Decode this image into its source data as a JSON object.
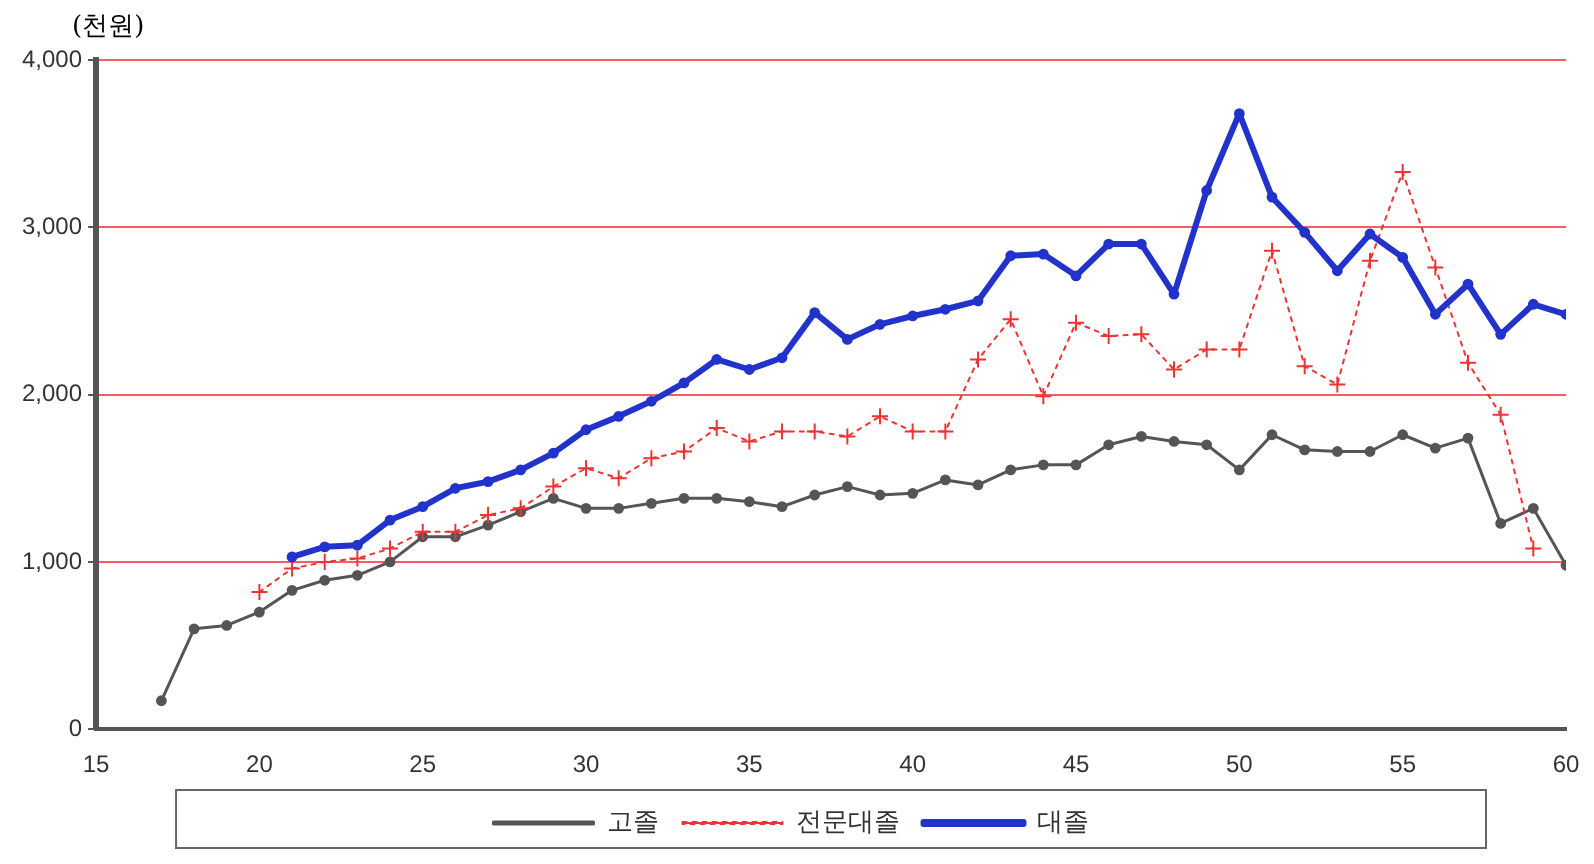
{
  "chart_data": {
    "type": "line",
    "ylabel": "(천원)",
    "xlim": [
      15,
      60
    ],
    "xticks": [
      15,
      20,
      25,
      30,
      35,
      40,
      45,
      50,
      55,
      60
    ],
    "ylim": [
      0,
      4000
    ],
    "yticks": [
      0,
      {
        "value": 1000,
        "label": "1,000"
      },
      {
        "value": 2000,
        "label": "2,000"
      },
      {
        "value": 3000,
        "label": "3,000"
      },
      {
        "value": 4000,
        "label": "4,000"
      }
    ],
    "grid": "y",
    "legend": "bottom",
    "series": [
      {
        "name": "고졸",
        "color": "#555555",
        "marker": "circle",
        "line_style": "solid",
        "x": [
          17,
          18,
          19,
          20,
          21,
          22,
          23,
          24,
          25,
          26,
          27,
          28,
          29,
          30,
          31,
          32,
          33,
          34,
          35,
          36,
          37,
          38,
          39,
          40,
          41,
          42,
          43,
          44,
          45,
          46,
          47,
          48,
          49,
          50,
          51,
          52,
          53,
          54,
          55,
          56,
          57,
          58,
          59,
          60
        ],
        "values": [
          170,
          600,
          620,
          700,
          830,
          890,
          920,
          1000,
          1150,
          1150,
          1220,
          1300,
          1380,
          1320,
          1320,
          1350,
          1380,
          1380,
          1360,
          1330,
          1400,
          1450,
          1400,
          1410,
          1490,
          1460,
          1550,
          1580,
          1580,
          1700,
          1750,
          1720,
          1700,
          1550,
          1760,
          1670,
          1660,
          1660,
          1760,
          1680,
          1740,
          1230,
          1320,
          980
        ]
      },
      {
        "name": "전문대졸",
        "color": "#ee3333",
        "marker": "cross",
        "line_style": "dotted",
        "x": [
          20,
          21,
          22,
          23,
          24,
          25,
          26,
          27,
          28,
          29,
          30,
          31,
          32,
          33,
          34,
          35,
          36,
          37,
          38,
          39,
          40,
          41,
          42,
          43,
          44,
          45,
          46,
          47,
          48,
          49,
          50,
          51,
          52,
          53,
          54,
          55,
          56,
          57,
          58,
          59
        ],
        "values": [
          820,
          960,
          1000,
          1020,
          1080,
          1180,
          1180,
          1280,
          1320,
          1450,
          1560,
          1500,
          1620,
          1660,
          1800,
          1720,
          1780,
          1780,
          1750,
          1870,
          1780,
          1780,
          2210,
          2450,
          1990,
          2430,
          2350,
          2360,
          2150,
          2270,
          2270,
          2860,
          2170,
          2060,
          2800,
          3330,
          2760,
          2190,
          1880,
          1080
        ]
      },
      {
        "name": "대졸",
        "color": "#2233cc",
        "marker": "circle",
        "line_style": "solid",
        "x": [
          21,
          22,
          23,
          24,
          25,
          26,
          27,
          28,
          29,
          30,
          31,
          32,
          33,
          34,
          35,
          36,
          37,
          38,
          39,
          40,
          41,
          42,
          43,
          44,
          45,
          46,
          47,
          48,
          49,
          50,
          51,
          52,
          53,
          54,
          55,
          56,
          57,
          58,
          59,
          60
        ],
        "values": [
          1030,
          1090,
          1100,
          1250,
          1330,
          1440,
          1480,
          1550,
          1650,
          1790,
          1870,
          1960,
          2070,
          2210,
          2150,
          2220,
          2490,
          2330,
          2420,
          2470,
          2510,
          2560,
          2830,
          2840,
          2710,
          2900,
          2900,
          2600,
          3220,
          3680,
          3180,
          2970,
          2740,
          2960,
          2820,
          2480,
          2660,
          2360,
          2540,
          2480
        ]
      }
    ]
  }
}
